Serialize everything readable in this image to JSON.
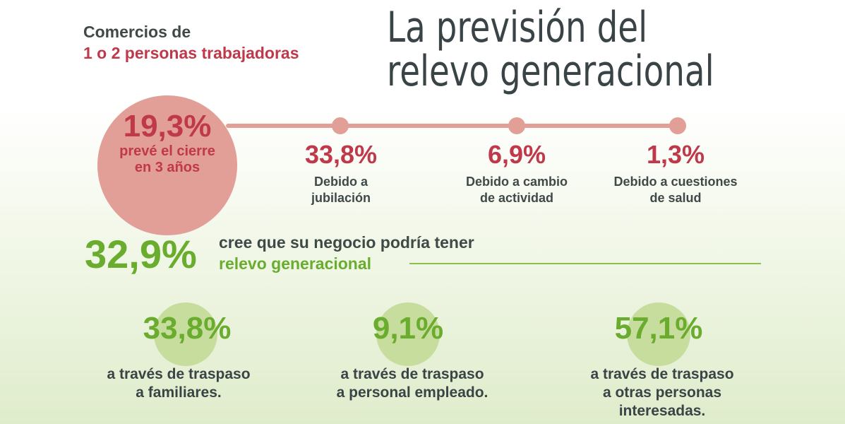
{
  "header": {
    "subtitle_line1": "Comercios de",
    "subtitle_line2": "1 o 2 personas trabajadoras",
    "title_line1": "La previsión del",
    "title_line2": "relevo generacional"
  },
  "closure": {
    "value": "19,3%",
    "desc_line1": "prevé el cierre",
    "desc_line2": "en 3 años"
  },
  "causes": [
    {
      "value": "33,8%",
      "desc_line1": "Debido a",
      "desc_line2": "jubilación"
    },
    {
      "value": "6,9%",
      "desc_line1": "Debido a cambio",
      "desc_line2": "de actividad"
    },
    {
      "value": "1,3%",
      "desc_line1": "Debido a cuestiones",
      "desc_line2": "de salud"
    }
  ],
  "relevo": {
    "value": "32,9%",
    "text_line1": "cree que su negocio podría tener",
    "text_line2": "relevo generacional"
  },
  "paths": [
    {
      "value": "33,8%",
      "desc_line1": "a través de traspaso",
      "desc_line2": "a familiares.",
      "desc_line3": ""
    },
    {
      "value": "9,1%",
      "desc_line1": "a través de traspaso",
      "desc_line2": "a personal empleado.",
      "desc_line3": ""
    },
    {
      "value": "57,1%",
      "desc_line1": "a través de traspaso",
      "desc_line2": "a otras personas",
      "desc_line3": "interesadas."
    }
  ],
  "colors": {
    "red": "#c0394a",
    "salmon": "#e29f97",
    "green": "#6aac2e",
    "dark": "#3a4446"
  }
}
